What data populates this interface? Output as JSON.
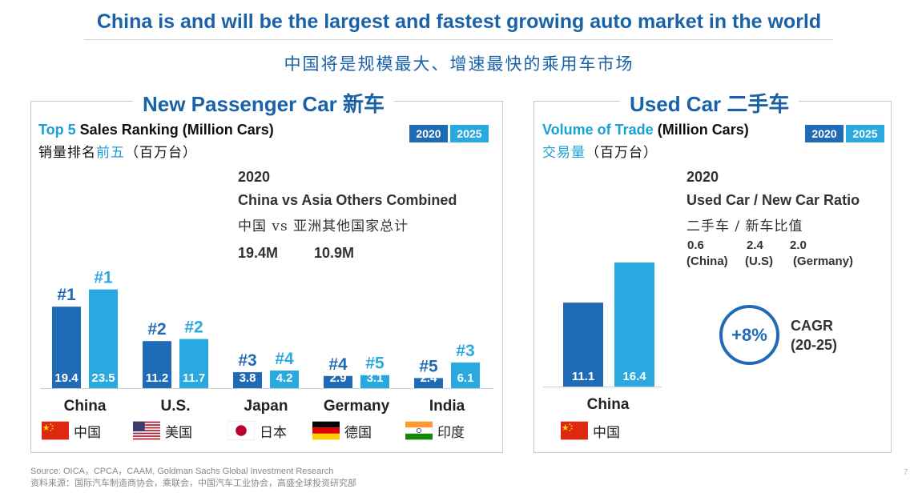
{
  "title": "China is and will be the largest and fastest growing auto market in the world",
  "subtitle_cn": "中国将是规模最大、增速最快的乘用车市场",
  "colors": {
    "bar_2020": "#1f6bb5",
    "bar_2025": "#2aa9e0",
    "accent": "#1a62a8",
    "highlight": "#1aa0d8"
  },
  "years": {
    "y2020": "2020",
    "y2025": "2025"
  },
  "new_car": {
    "heading": "New Passenger Car 新车",
    "metric_highlight": "Top 5",
    "metric_rest": " Sales Ranking (Million Cars)",
    "metric_cn_a": "销量排名",
    "metric_cn_b": "前五",
    "metric_cn_c": "（百万台）",
    "note_year": "2020",
    "note_title": "China vs Asia Others Combined",
    "note_cn": "中国  vs 亚洲其他国家总计",
    "note_v1": "19.4M",
    "note_v2": "10.9M"
  },
  "used_car": {
    "heading": "Used Car 二手车",
    "metric_highlight": "Volume of Trade",
    "metric_rest": " (Million Cars)",
    "metric_cn": "交易量",
    "metric_cn_rest": "（百万台）",
    "note_year": "2020",
    "note_title": "Used Car / New Car Ratio",
    "note_cn": "二手车 / 新车比值",
    "ratios": [
      {
        "value": "0.6",
        "label": "(China)"
      },
      {
        "value": "2.4",
        "label": "(U.S)"
      },
      {
        "value": "2.0",
        "label": "(Germany)"
      }
    ],
    "cagr_value": "+8%",
    "cagr_label": "CAGR",
    "cagr_period": "(20-25)"
  },
  "chart_data": [
    {
      "type": "bar",
      "title": "Top 5 Sales Ranking (Million Cars)",
      "categories": [
        "China",
        "U.S.",
        "Japan",
        "Germany",
        "India"
      ],
      "categories_cn": [
        "中国",
        "美国",
        "日本",
        "德国",
        "印度"
      ],
      "series": [
        {
          "name": "2020",
          "values": [
            19.4,
            11.2,
            3.8,
            2.9,
            2.4
          ],
          "ranks": [
            "#1",
            "#2",
            "#3",
            "#4",
            "#5"
          ]
        },
        {
          "name": "2025",
          "values": [
            23.5,
            11.7,
            4.2,
            3.1,
            6.1
          ],
          "ranks": [
            "#1",
            "#2",
            "#4",
            "#5",
            "#3"
          ]
        }
      ],
      "value_labels": [
        [
          "19.4",
          "11.2",
          "3.8",
          "2.9",
          "2.4"
        ],
        [
          "23.5",
          "11.7",
          "4.2",
          "3.1",
          "6.1"
        ]
      ],
      "ylim": [
        0,
        26
      ]
    },
    {
      "type": "bar",
      "title": "Volume of Trade (Million Cars)",
      "categories": [
        "China"
      ],
      "categories_cn": [
        "中国"
      ],
      "series": [
        {
          "name": "2020",
          "values": [
            11.1
          ]
        },
        {
          "name": "2025",
          "values": [
            16.4
          ]
        }
      ],
      "value_labels": [
        [
          "11.1"
        ],
        [
          "16.4"
        ]
      ],
      "ylim": [
        0,
        16.4
      ]
    }
  ],
  "source_en": "Source: OICA，CPCA，CAAM, Goldman Sachs Global Investment Research",
  "source_cn": "资料来源：国际汽车制造商协会，乘联会，中国汽车工业协会，高盛全球投资研究部",
  "page_number": "7"
}
